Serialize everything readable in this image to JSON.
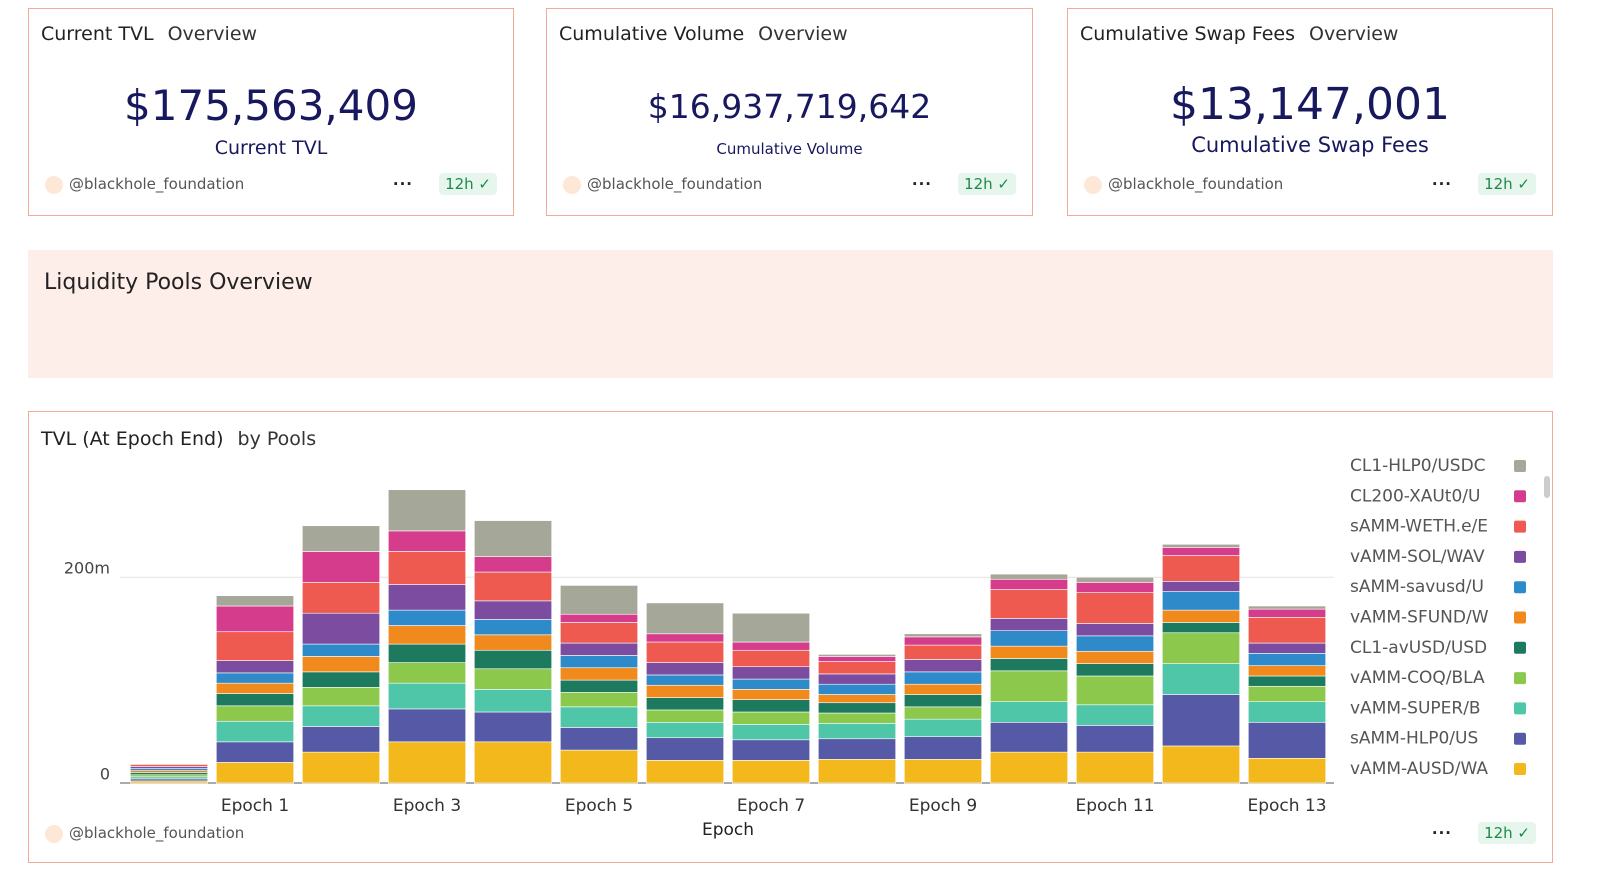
{
  "cards": [
    {
      "title": "Current TVL",
      "subtitle": "Overview",
      "value": "$175,563,409",
      "label": "Current TVL",
      "author": "@blackhole_foundation",
      "age": "12h"
    },
    {
      "title": "Cumulative Volume",
      "subtitle": "Overview",
      "value": "$16,937,719,642",
      "label": "Cumulative Volume",
      "author": "@blackhole_foundation",
      "age": "12h"
    },
    {
      "title": "Cumulative Swap Fees",
      "subtitle": "Overview",
      "value": "$13,147,001",
      "label": "Cumulative Swap Fees",
      "author": "@blackhole_foundation",
      "age": "12h"
    }
  ],
  "section": {
    "title": "Liquidity Pools Overview"
  },
  "chart_footer": {
    "author": "@blackhole_foundation",
    "age": "12h"
  },
  "chart_data": {
    "type": "bar",
    "stacked": true,
    "title": "TVL (At Epoch End)",
    "subtitle": "by Pools",
    "x_label": "Epoch",
    "categories": [
      null,
      "Epoch 1",
      null,
      "Epoch 3",
      null,
      "Epoch 5",
      null,
      "Epoch 7",
      null,
      "Epoch 9",
      null,
      "Epoch 11",
      null,
      "Epoch 13"
    ],
    "ylim": [
      0,
      310
    ],
    "yticks": [
      0,
      {
        "value": 200,
        "label": "200m"
      }
    ],
    "grid": true,
    "series": [
      {
        "name": "CL1-HLP0/USDC",
        "color": "#a5a898",
        "values": [
          0,
          10,
          25,
          40,
          35,
          28,
          30,
          28,
          2,
          3,
          5,
          5,
          3,
          3
        ]
      },
      {
        "name": "CL200-XAUt0/U",
        "color": "#d63c8c",
        "values": [
          0,
          25,
          30,
          20,
          15,
          8,
          8,
          8,
          5,
          8,
          10,
          10,
          8,
          8
        ]
      },
      {
        "name": "sAMM-WETH.e/E",
        "color": "#ee5a4f",
        "values": [
          2,
          28,
          30,
          32,
          28,
          20,
          20,
          16,
          12,
          14,
          28,
          30,
          25,
          25
        ]
      },
      {
        "name": "vAMM-SOL/WAV",
        "color": "#7b4ca0",
        "values": [
          2,
          12,
          30,
          25,
          18,
          12,
          12,
          12,
          10,
          12,
          12,
          12,
          10,
          10
        ]
      },
      {
        "name": "sAMM-savusd/U",
        "color": "#2f8ac9",
        "values": [
          2,
          10,
          12,
          15,
          15,
          12,
          10,
          10,
          10,
          12,
          15,
          15,
          18,
          12
        ]
      },
      {
        "name": "vAMM-SFUND/W",
        "color": "#f08a1c",
        "values": [
          2,
          10,
          15,
          18,
          15,
          12,
          12,
          10,
          8,
          10,
          12,
          12,
          12,
          10
        ]
      },
      {
        "name": "CL1-avUSD/USD",
        "color": "#1e7a5e",
        "values": [
          2,
          12,
          15,
          18,
          18,
          12,
          12,
          12,
          10,
          12,
          12,
          12,
          10,
          10
        ]
      },
      {
        "name": "vAMM-COQ/BLA",
        "color": "#8cc84b",
        "values": [
          2,
          15,
          18,
          20,
          20,
          14,
          12,
          12,
          10,
          12,
          30,
          28,
          30,
          15
        ]
      },
      {
        "name": "vAMM-SUPER/B",
        "color": "#4fc6a8",
        "values": [
          2,
          20,
          20,
          25,
          22,
          20,
          15,
          15,
          15,
          17,
          20,
          20,
          30,
          20
        ]
      },
      {
        "name": "sAMM-HLP0/US",
        "color": "#565aa6",
        "values": [
          2,
          20,
          25,
          32,
          29,
          22,
          22,
          20,
          20,
          22,
          29,
          26,
          50,
          35
        ]
      },
      {
        "name": "vAMM-AUSD/WA",
        "color": "#f2b81c",
        "values": [
          2,
          20,
          30,
          40,
          40,
          32,
          22,
          22,
          23,
          23,
          30,
          30,
          36,
          24
        ]
      }
    ]
  }
}
